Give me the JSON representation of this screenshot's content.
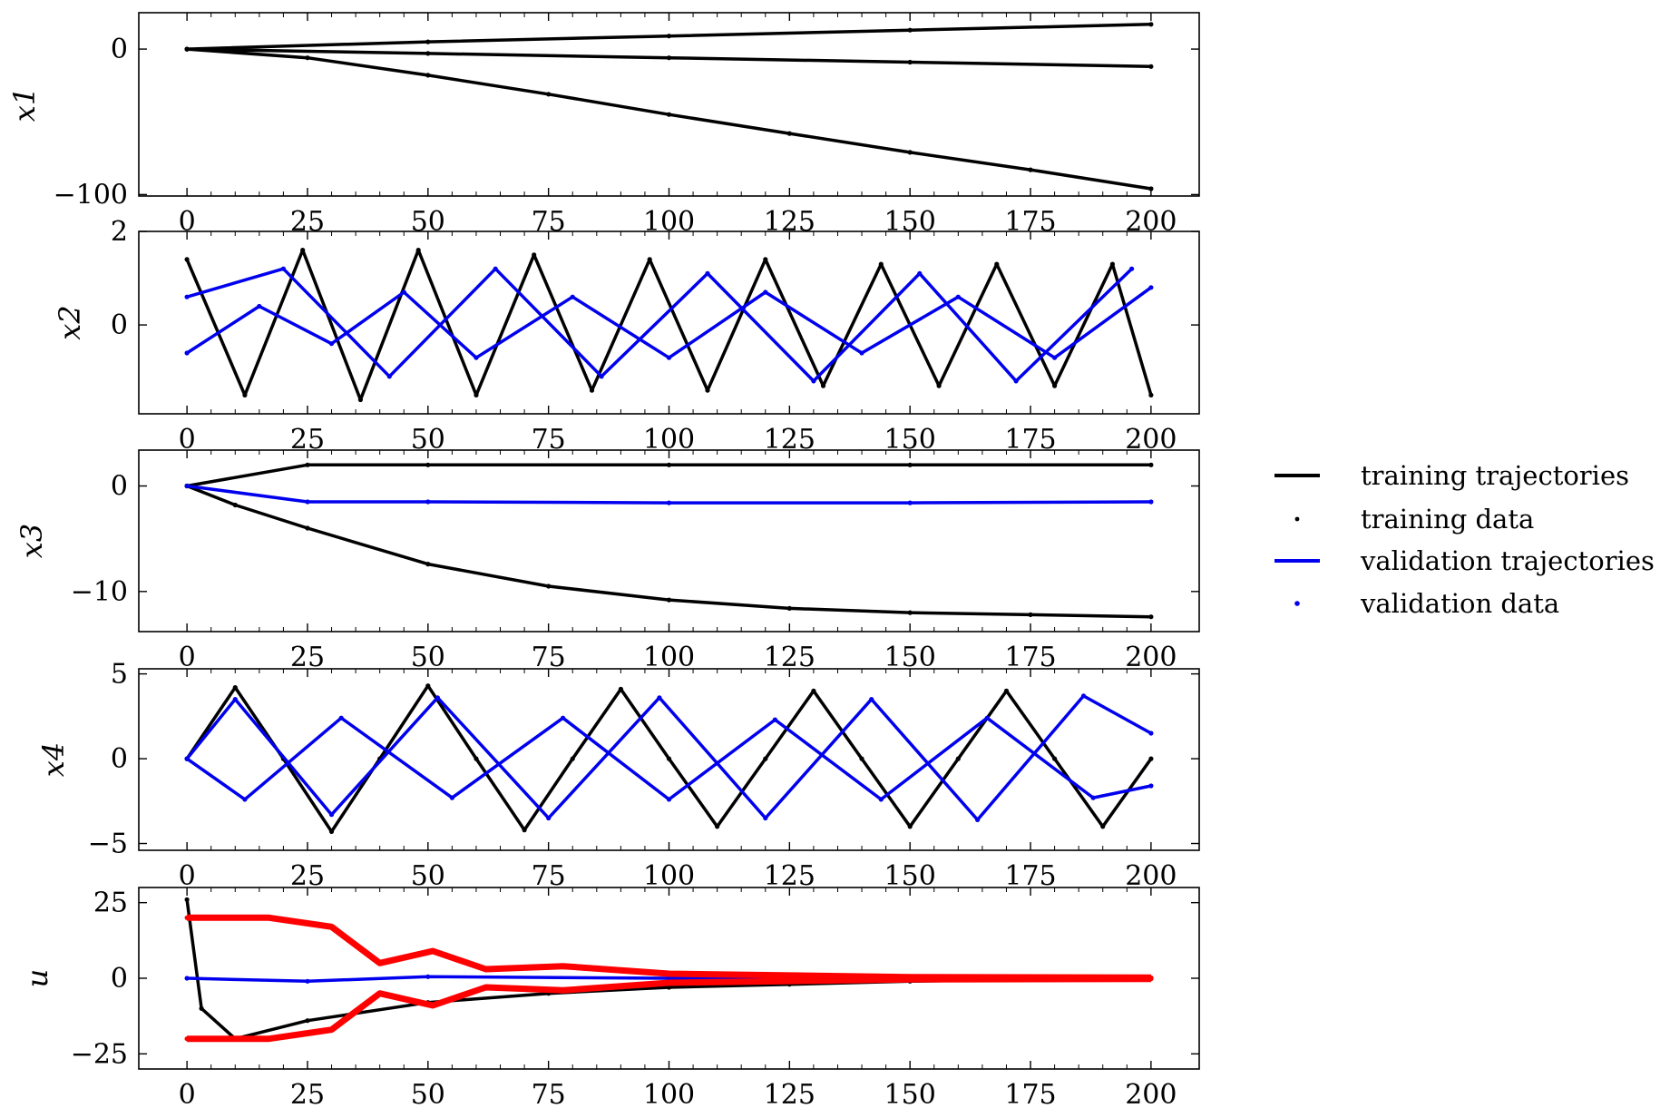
{
  "chart_data": [
    {
      "type": "line",
      "ylabel": "x1",
      "xlabel": "",
      "xlim": [
        -10,
        210
      ],
      "ylim": [
        -101,
        25
      ],
      "xticks": [
        0,
        25,
        50,
        75,
        100,
        125,
        150,
        175,
        200
      ],
      "yticks": [
        0,
        -100
      ],
      "ytick_labels": [
        "0",
        "−100"
      ],
      "series": [
        {
          "values": [
            [
              0,
              0
            ],
            [
              25,
              -6
            ],
            [
              50,
              -18
            ],
            [
              75,
              -31
            ],
            [
              100,
              -45
            ],
            [
              125,
              -58
            ],
            [
              150,
              -71
            ],
            [
              175,
              -83
            ],
            [
              200,
              -96
            ]
          ]
        },
        {
          "values": [
            [
              0,
              0
            ],
            [
              50,
              5
            ],
            [
              100,
              9
            ],
            [
              150,
              13
            ],
            [
              200,
              17
            ]
          ]
        },
        {
          "values": [
            [
              0,
              0
            ],
            [
              50,
              -3
            ],
            [
              100,
              -6
            ],
            [
              150,
              -9
            ],
            [
              200,
              -12
            ]
          ]
        }
      ]
    },
    {
      "type": "line",
      "ylabel": "x2",
      "xlabel": "",
      "xlim": [
        -10,
        210
      ],
      "ylim": [
        -1.9,
        2.0
      ],
      "xticks": [
        0,
        25,
        50,
        75,
        100,
        125,
        150,
        175,
        200
      ],
      "yticks": [
        2,
        0
      ],
      "ytick_labels": [
        "2",
        "0"
      ],
      "series": [
        {
          "values": [
            [
              0,
              1.4
            ],
            [
              12,
              -1.5
            ],
            [
              24,
              1.6
            ],
            [
              36,
              -1.6
            ],
            [
              48,
              1.6
            ],
            [
              60,
              -1.5
            ],
            [
              72,
              1.5
            ],
            [
              84,
              -1.4
            ],
            [
              96,
              1.4
            ],
            [
              108,
              -1.4
            ],
            [
              120,
              1.4
            ],
            [
              132,
              -1.3
            ],
            [
              144,
              1.3
            ],
            [
              156,
              -1.3
            ],
            [
              168,
              1.3
            ],
            [
              180,
              -1.3
            ],
            [
              192,
              1.3
            ],
            [
              200,
              -1.5
            ]
          ]
        },
        {
          "values": [
            [
              0,
              0.6
            ],
            [
              20,
              1.2
            ],
            [
              42,
              -1.1
            ],
            [
              64,
              1.2
            ],
            [
              86,
              -1.1
            ],
            [
              108,
              1.1
            ],
            [
              130,
              -1.2
            ],
            [
              152,
              1.1
            ],
            [
              172,
              -1.2
            ],
            [
              196,
              1.2
            ]
          ]
        },
        {
          "values": [
            [
              0,
              -0.6
            ],
            [
              15,
              0.4
            ],
            [
              30,
              -0.4
            ],
            [
              45,
              0.7
            ],
            [
              60,
              -0.7
            ],
            [
              80,
              0.6
            ],
            [
              100,
              -0.7
            ],
            [
              120,
              0.7
            ],
            [
              140,
              -0.6
            ],
            [
              160,
              0.6
            ],
            [
              180,
              -0.7
            ],
            [
              200,
              0.8
            ]
          ]
        }
      ]
    },
    {
      "type": "line",
      "ylabel": "x3",
      "xlabel": "",
      "xlim": [
        -10,
        210
      ],
      "ylim": [
        -13.8,
        3.4
      ],
      "xticks": [
        0,
        25,
        50,
        75,
        100,
        125,
        150,
        175,
        200
      ],
      "yticks": [
        0,
        -10
      ],
      "ytick_labels": [
        "0",
        "−10"
      ],
      "series": [
        {
          "values": [
            [
              0,
              0
            ],
            [
              10,
              -1.8
            ],
            [
              25,
              -4
            ],
            [
              50,
              -7.4
            ],
            [
              75,
              -9.5
            ],
            [
              100,
              -10.8
            ],
            [
              125,
              -11.6
            ],
            [
              150,
              -12
            ],
            [
              175,
              -12.2
            ],
            [
              200,
              -12.4
            ]
          ]
        },
        {
          "values": [
            [
              0,
              0
            ],
            [
              25,
              2
            ],
            [
              50,
              2
            ],
            [
              100,
              2
            ],
            [
              150,
              2
            ],
            [
              200,
              2
            ]
          ]
        },
        {
          "values": [
            [
              0,
              0
            ],
            [
              25,
              -1.5
            ],
            [
              50,
              -1.5
            ],
            [
              100,
              -1.6
            ],
            [
              150,
              -1.6
            ],
            [
              200,
              -1.5
            ]
          ]
        }
      ]
    },
    {
      "type": "line",
      "ylabel": "x4",
      "xlabel": "",
      "xlim": [
        -10,
        210
      ],
      "ylim": [
        -5.4,
        5.3
      ],
      "xticks": [
        0,
        25,
        50,
        75,
        100,
        125,
        150,
        175,
        200
      ],
      "yticks": [
        5,
        0,
        -5
      ],
      "ytick_labels": [
        "5",
        "0",
        "−5"
      ],
      "series": [
        {
          "values": [
            [
              0,
              0
            ],
            [
              10,
              4.2
            ],
            [
              20,
              0
            ],
            [
              30,
              -4.3
            ],
            [
              40,
              0
            ],
            [
              50,
              4.3
            ],
            [
              60,
              0
            ],
            [
              70,
              -4.2
            ],
            [
              80,
              0
            ],
            [
              90,
              4.1
            ],
            [
              100,
              0
            ],
            [
              110,
              -4.0
            ],
            [
              120,
              0
            ],
            [
              130,
              4.0
            ],
            [
              140,
              0
            ],
            [
              150,
              -4.0
            ],
            [
              160,
              0
            ],
            [
              170,
              4.0
            ],
            [
              180,
              0
            ],
            [
              190,
              -4.0
            ],
            [
              200,
              0
            ]
          ]
        },
        {
          "values": [
            [
              0,
              0
            ],
            [
              10,
              3.5
            ],
            [
              30,
              -3.3
            ],
            [
              52,
              3.6
            ],
            [
              75,
              -3.5
            ],
            [
              98,
              3.6
            ],
            [
              120,
              -3.5
            ],
            [
              142,
              3.5
            ],
            [
              164,
              -3.6
            ],
            [
              186,
              3.7
            ],
            [
              200,
              1.5
            ]
          ]
        },
        {
          "values": [
            [
              0,
              0
            ],
            [
              12,
              -2.4
            ],
            [
              32,
              2.4
            ],
            [
              55,
              -2.3
            ],
            [
              78,
              2.4
            ],
            [
              100,
              -2.4
            ],
            [
              122,
              2.3
            ],
            [
              144,
              -2.4
            ],
            [
              166,
              2.4
            ],
            [
              188,
              -2.3
            ],
            [
              200,
              -1.6
            ]
          ]
        }
      ]
    },
    {
      "type": "line",
      "ylabel": "u",
      "xlabel": "",
      "xlim": [
        -10,
        210
      ],
      "ylim": [
        -30,
        30
      ],
      "xticks": [
        0,
        25,
        50,
        75,
        100,
        125,
        150,
        175,
        200
      ],
      "yticks": [
        25,
        0,
        -25
      ],
      "ytick_labels": [
        "25",
        "0",
        "−25"
      ],
      "series": [
        {
          "values": [
            [
              0,
              26
            ],
            [
              3,
              -10
            ],
            [
              10,
              -20
            ],
            [
              25,
              -14
            ],
            [
              50,
              -8
            ],
            [
              75,
              -5
            ],
            [
              100,
              -3
            ],
            [
              125,
              -2
            ],
            [
              150,
              -1
            ],
            [
              175,
              -0.4
            ],
            [
              200,
              0
            ]
          ]
        },
        {
          "values": [
            [
              0,
              0
            ],
            [
              25,
              -1
            ],
            [
              50,
              0.5
            ],
            [
              100,
              0
            ],
            [
              200,
              0
            ]
          ]
        },
        {
          "values": [
            [
              0,
              20
            ],
            [
              17,
              20
            ],
            [
              30,
              17
            ],
            [
              40,
              5
            ],
            [
              51,
              9
            ],
            [
              62,
              3
            ],
            [
              78,
              4
            ],
            [
              100,
              1.5
            ],
            [
              150,
              0.4
            ],
            [
              200,
              0.2
            ]
          ]
        },
        {
          "values": [
            [
              0,
              -20
            ],
            [
              17,
              -20
            ],
            [
              30,
              -17
            ],
            [
              40,
              -5
            ],
            [
              51,
              -9
            ],
            [
              62,
              -3
            ],
            [
              78,
              -4
            ],
            [
              100,
              -1.5
            ],
            [
              150,
              -0.4
            ],
            [
              200,
              -0.2
            ]
          ]
        }
      ]
    }
  ],
  "legend": {
    "placement": "right",
    "entries": [
      {
        "label": "training trajectories",
        "kind": "line",
        "color": "#000000"
      },
      {
        "label": "training data",
        "kind": "dot",
        "color": "#000000"
      },
      {
        "label": "validation trajectories",
        "kind": "line",
        "color": "#0000ee"
      },
      {
        "label": "validation data",
        "kind": "dot",
        "color": "#0000ee"
      }
    ]
  },
  "colors": {
    "training": "#000000",
    "validation": "#0000ee",
    "control": "#ff0000"
  }
}
